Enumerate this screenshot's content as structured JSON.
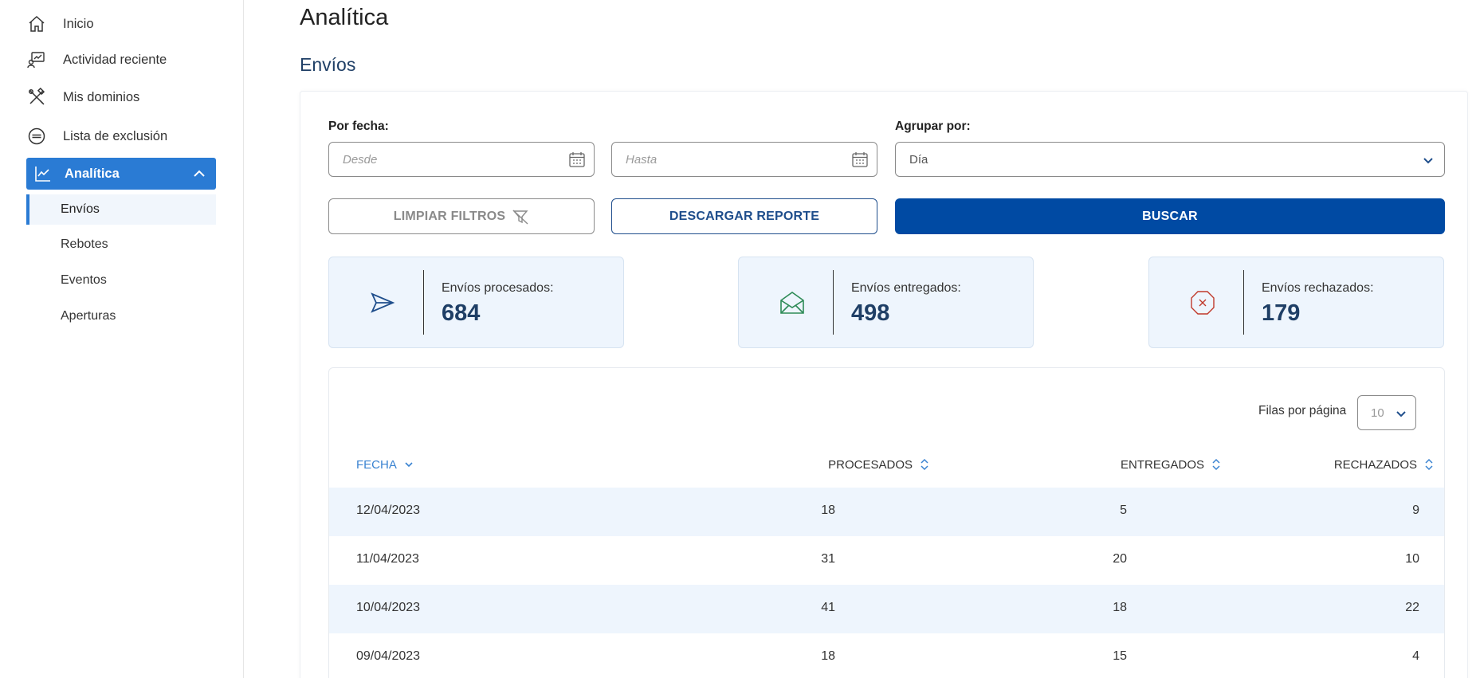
{
  "sidebar": {
    "items": [
      {
        "label": "Inicio",
        "icon": "home-icon"
      },
      {
        "label": "Actividad reciente",
        "icon": "activity-icon"
      },
      {
        "label": "Mis dominios",
        "icon": "tools-icon"
      },
      {
        "label": "Lista de exclusión",
        "icon": "block-icon"
      },
      {
        "label": "Analítica",
        "icon": "chart-icon"
      }
    ],
    "subitems": [
      {
        "label": "Envíos"
      },
      {
        "label": "Rebotes"
      },
      {
        "label": "Eventos"
      },
      {
        "label": "Aperturas"
      }
    ]
  },
  "main": {
    "title": "Analítica",
    "section_title": "Envíos",
    "filters": {
      "date_label": "Por fecha:",
      "from_placeholder": "Desde",
      "to_placeholder": "Hasta",
      "group_label": "Agrupar por:",
      "group_value": "Día"
    },
    "buttons": {
      "clear": "LIMPIAR FILTROS",
      "download": "DESCARGAR REPORTE",
      "search": "BUSCAR"
    },
    "stats": [
      {
        "label": "Envíos procesados:",
        "value": "684"
      },
      {
        "label": "Envíos entregados:",
        "value": "498"
      },
      {
        "label": "Envíos rechazados:",
        "value": "179"
      }
    ],
    "table": {
      "rows_per_page_label": "Filas por página",
      "rows_per_page_value": "10",
      "headers": {
        "date": "FECHA",
        "processed": "PROCESADOS",
        "delivered": "ENTREGADOS",
        "rejected": "RECHAZADOS"
      },
      "rows": [
        {
          "date": "12/04/2023",
          "processed": "18",
          "delivered": "5",
          "rejected": "9"
        },
        {
          "date": "11/04/2023",
          "processed": "31",
          "delivered": "20",
          "rejected": "10"
        },
        {
          "date": "10/04/2023",
          "processed": "41",
          "delivered": "18",
          "rejected": "22"
        },
        {
          "date": "09/04/2023",
          "processed": "18",
          "delivered": "15",
          "rejected": "4"
        }
      ]
    }
  },
  "colors": {
    "accent": "#2a7bd4",
    "primary_button": "#004aa3",
    "stat_bg": "#eef5fd",
    "reject_red": "#c0392b",
    "deliver_green": "#2e8b57"
  }
}
